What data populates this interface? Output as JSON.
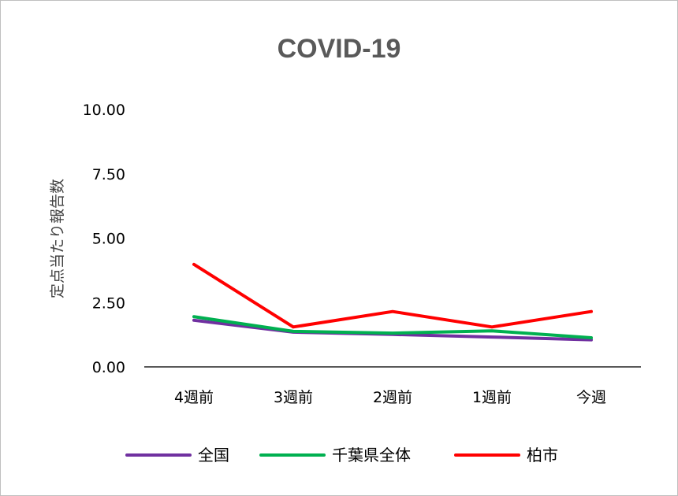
{
  "chart_data": {
    "type": "line",
    "title": "COVID-19",
    "xlabel": "",
    "ylabel": "定点当たり報告数",
    "categories": [
      "4週前",
      "3週前",
      "2週前",
      "1週前",
      "今週"
    ],
    "yticks": [
      "0.00",
      "2.50",
      "5.00",
      "7.50",
      "10.00"
    ],
    "ylim": [
      0,
      10
    ],
    "grid": false,
    "legend_position": "bottom",
    "series": [
      {
        "name": "全国",
        "color": "#7030a0",
        "values": [
          1.81,
          1.35,
          1.26,
          1.16,
          1.05
        ]
      },
      {
        "name": "千葉県全体",
        "color": "#00b050",
        "values": [
          1.95,
          1.38,
          1.31,
          1.4,
          1.13
        ]
      },
      {
        "name": "柏市",
        "color": "#ff0000",
        "values": [
          3.98,
          1.55,
          2.15,
          1.55,
          2.15
        ]
      }
    ]
  }
}
